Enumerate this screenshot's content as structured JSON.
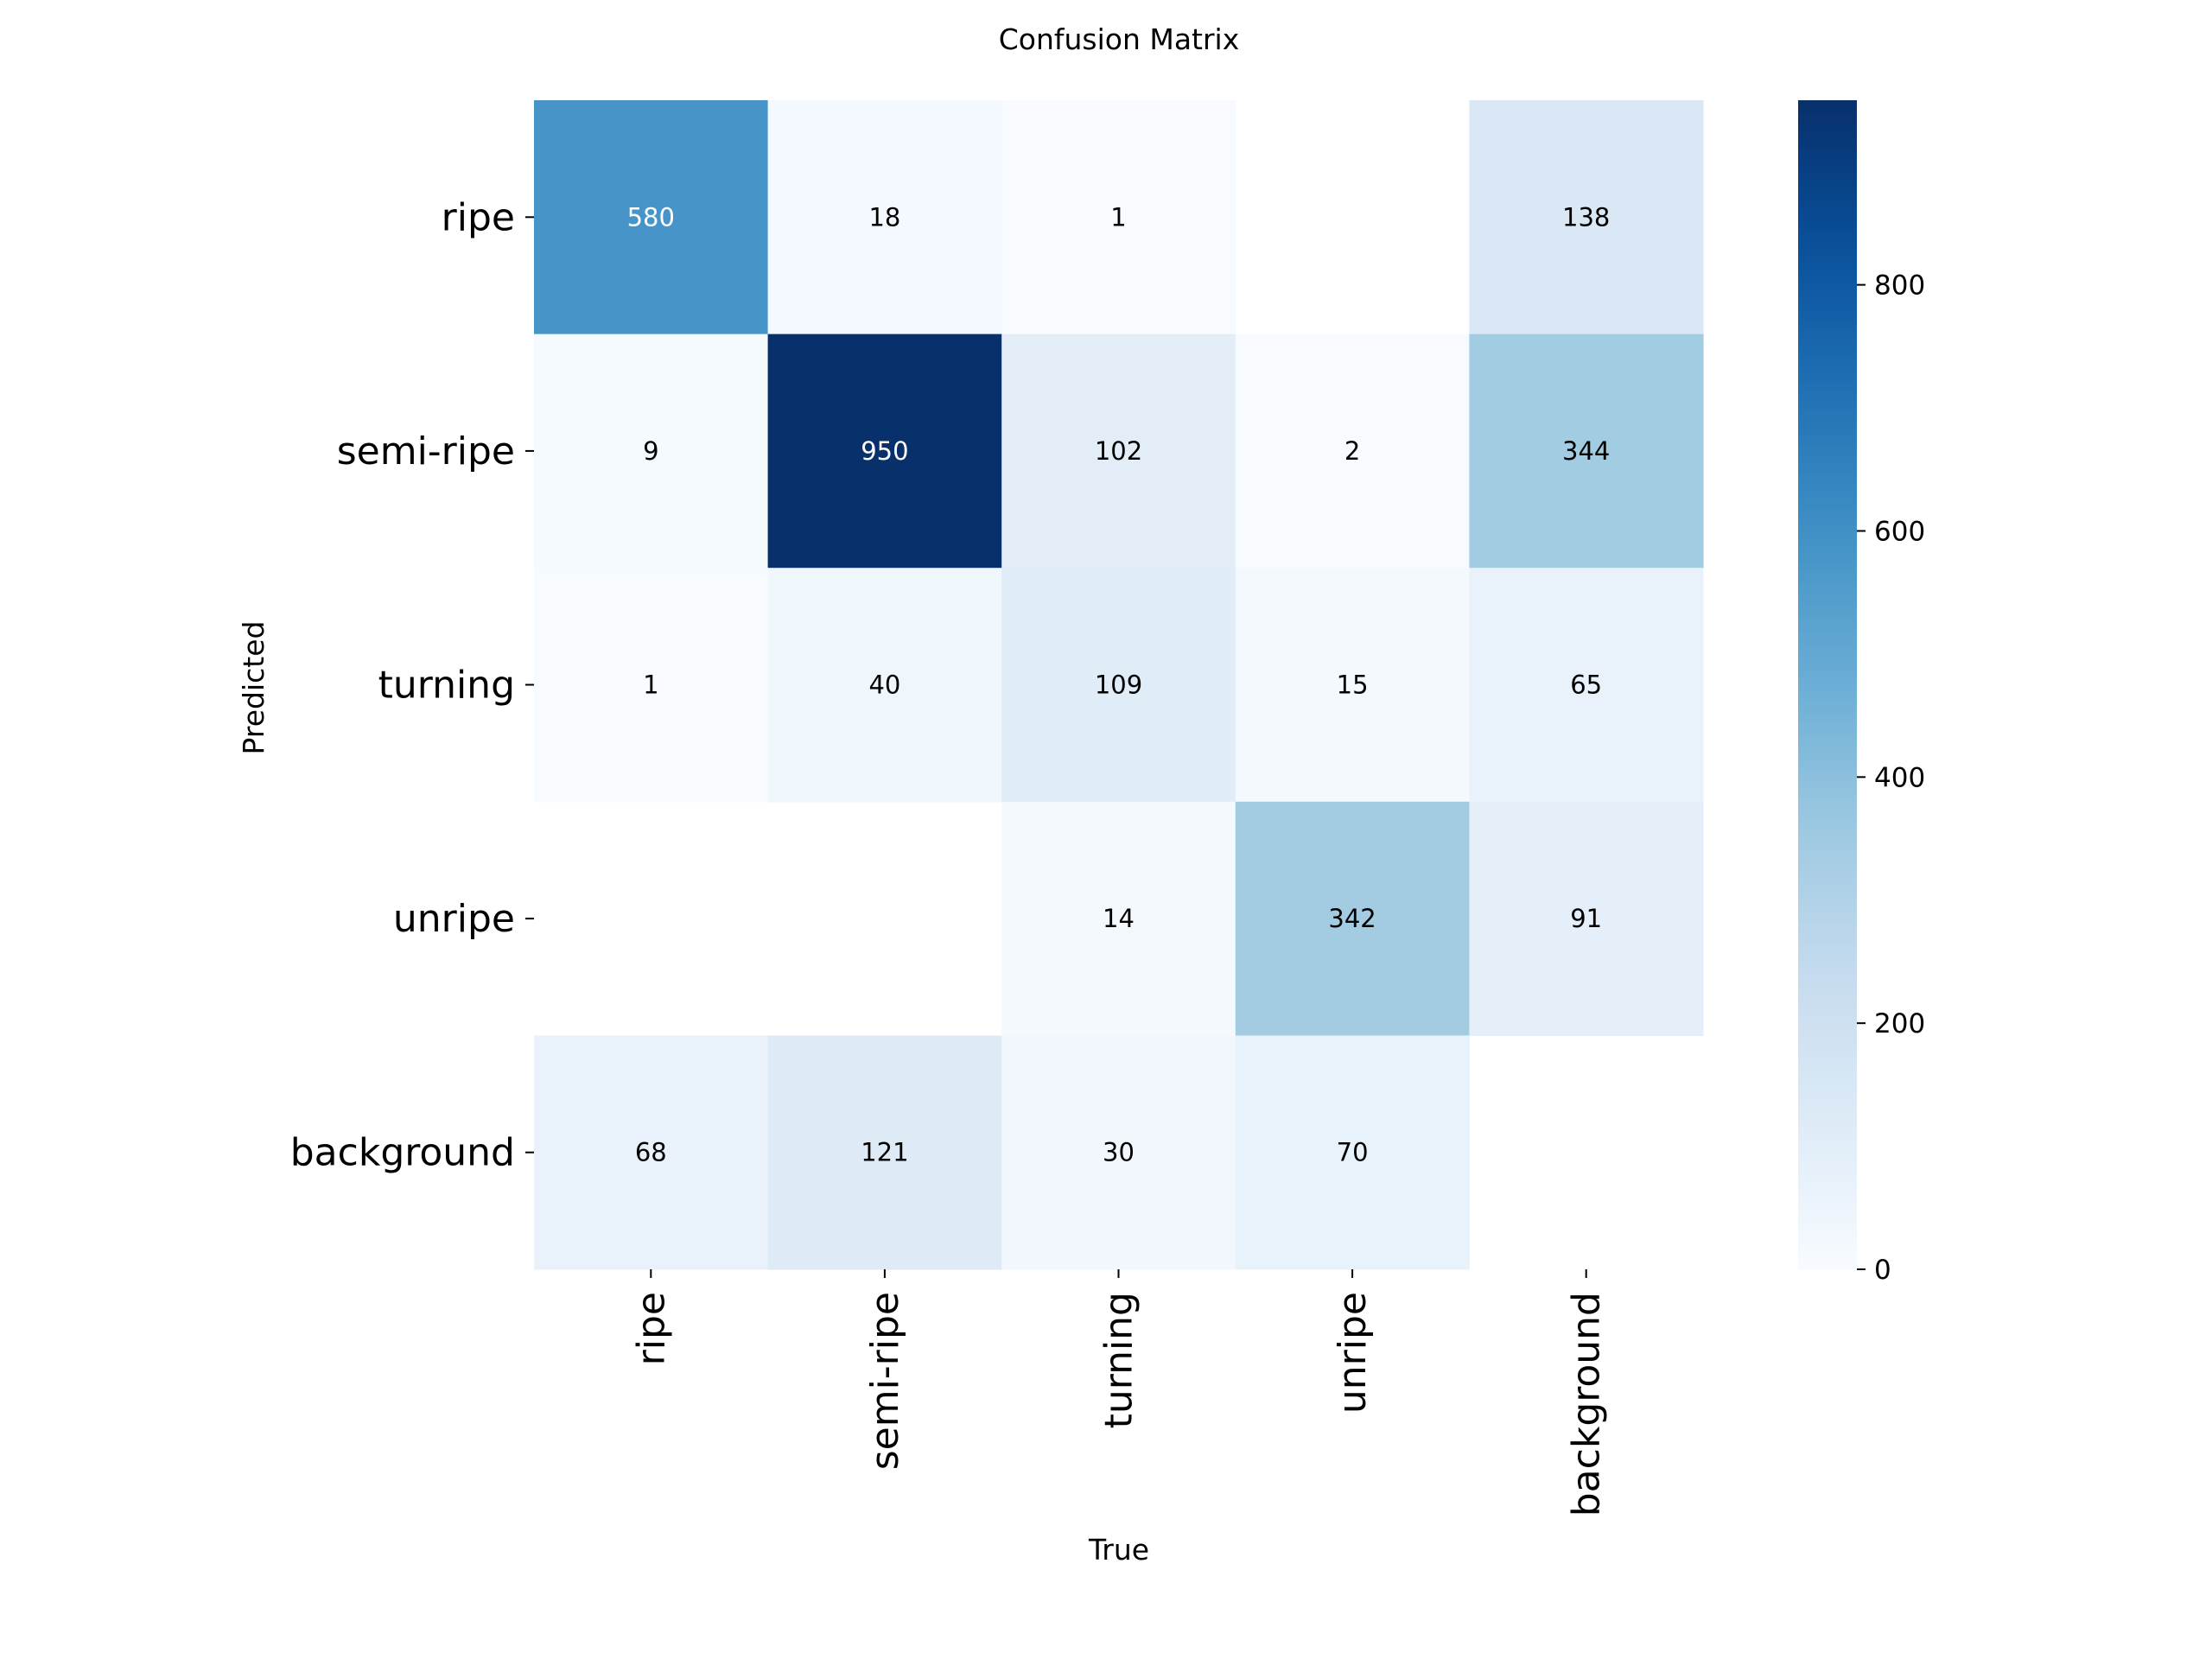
{
  "chart_data": {
    "type": "heatmap",
    "title": "Confusion Matrix",
    "xlabel": "True",
    "ylabel": "Predicted",
    "x_categories": [
      "ripe",
      "semi-ripe",
      "turning",
      "unripe",
      "background"
    ],
    "y_categories": [
      "ripe",
      "semi-ripe",
      "turning",
      "unripe",
      "background"
    ],
    "values": [
      [
        580,
        18,
        1,
        null,
        138
      ],
      [
        9,
        950,
        102,
        2,
        344
      ],
      [
        1,
        40,
        109,
        15,
        65
      ],
      [
        null,
        null,
        14,
        342,
        91
      ],
      [
        68,
        121,
        30,
        70,
        null
      ]
    ],
    "colormap": "Blues",
    "color_range": [
      0,
      950
    ],
    "colorbar_ticks": [
      0,
      200,
      400,
      600,
      800
    ],
    "colorbar_tick_labels": [
      "0",
      "200",
      "400",
      "600",
      "800"
    ]
  }
}
